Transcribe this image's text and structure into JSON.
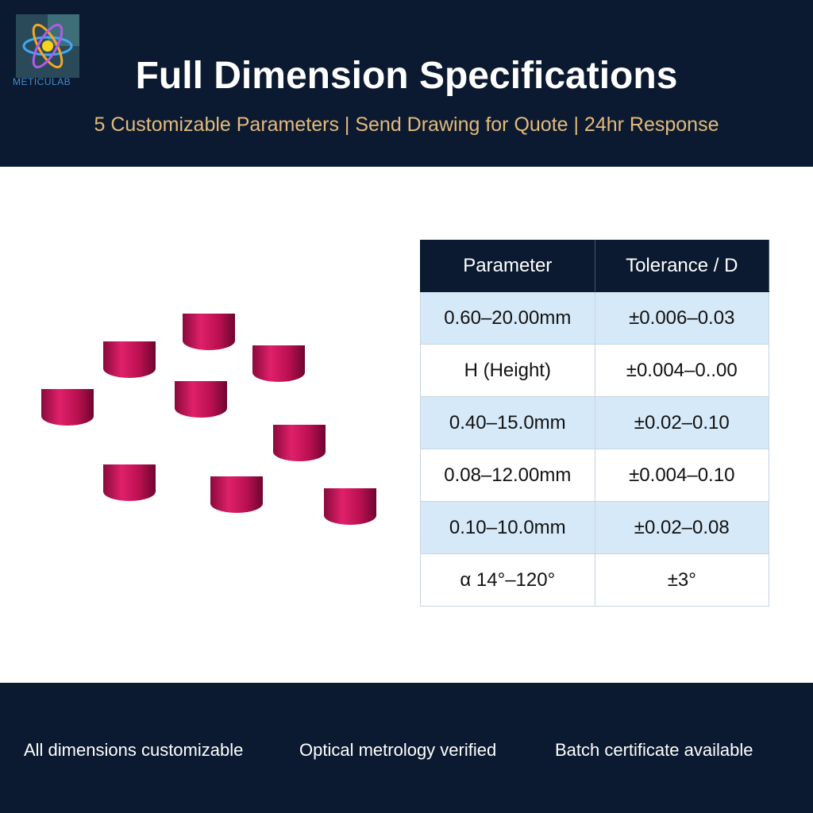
{
  "logo": "METICULAB",
  "header": {
    "title": "Full Dimension Specifications",
    "subtitle": "5 Customizable Parameters | Send Drawing for Quote | 24hr Response"
  },
  "table": {
    "columns": [
      "Parameter",
      "Tolerance / D"
    ],
    "rows": [
      [
        "0.60–20.00mm",
        "±0.006–0.03"
      ],
      [
        "H (Height)",
        "±0.004–0..00"
      ],
      [
        "0.40–15.0mm",
        "±0.02–0.10"
      ],
      [
        "0.08–12.00mm",
        "±0.004–0.10"
      ],
      [
        "0.10–10.0mm",
        "±0.02–0.08"
      ],
      [
        "α 14°–120°",
        "±3°"
      ]
    ]
  },
  "footer": {
    "items": [
      "All dimensions customizable",
      "Optical metrology verified",
      "Batch certificate available"
    ]
  }
}
